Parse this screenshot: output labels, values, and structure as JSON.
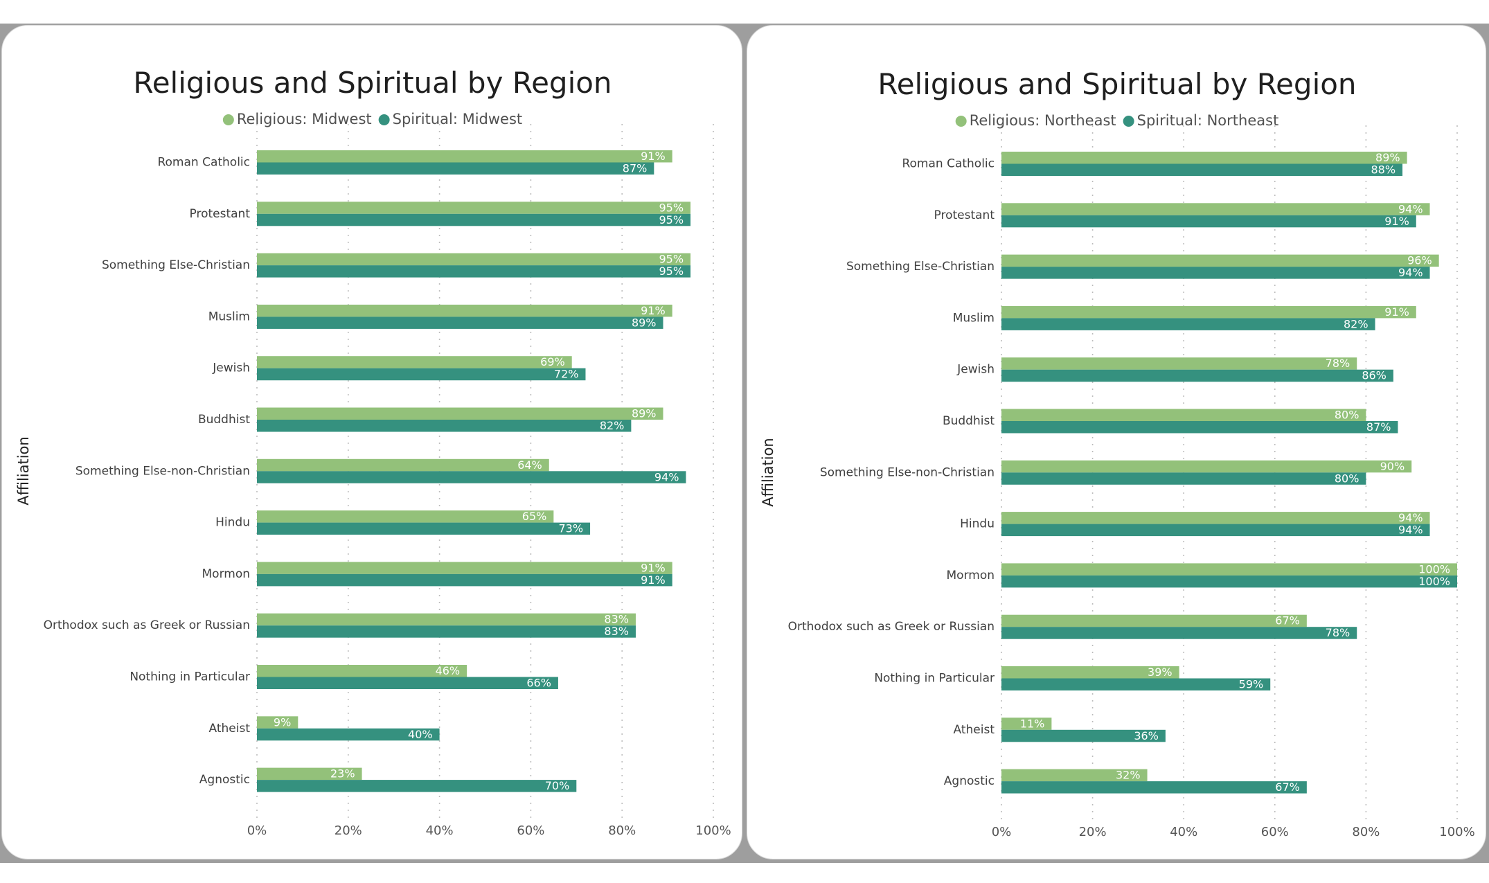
{
  "colors": {
    "religious": "#93c17a",
    "spiritual": "#35917f",
    "grid": "#bdbdbd"
  },
  "chart_data": [
    {
      "type": "bar",
      "orientation": "horizontal",
      "title": "Religious and Spiritual by Region",
      "ylabel": "Affiliation",
      "xlim": [
        0,
        100
      ],
      "x_ticks": [
        "0%",
        "20%",
        "40%",
        "60%",
        "80%",
        "100%"
      ],
      "grid": "vertical-dotted",
      "legend_position": "top-center",
      "categories": [
        "Roman Catholic",
        "Protestant",
        "Something Else-Christian",
        "Muslim",
        "Jewish",
        "Buddhist",
        "Something Else-non-Christian",
        "Hindu",
        "Mormon",
        "Orthodox such as Greek or Russian",
        "Nothing in Particular",
        "Atheist",
        "Agnostic"
      ],
      "series": [
        {
          "name": "Religious: Midwest",
          "values": [
            91,
            95,
            95,
            91,
            69,
            89,
            64,
            65,
            91,
            83,
            46,
            9,
            23
          ],
          "labels": [
            "91%",
            "95%",
            "95%",
            "91%",
            "69%",
            "89%",
            "64%",
            "65%",
            "91%",
            "83%",
            "46%",
            "9%",
            "23%"
          ]
        },
        {
          "name": "Spiritual: Midwest",
          "values": [
            87,
            95,
            95,
            89,
            72,
            82,
            94,
            73,
            91,
            83,
            66,
            40,
            70
          ],
          "labels": [
            "87%",
            "95%",
            "95%",
            "89%",
            "72%",
            "82%",
            "94%",
            "73%",
            "91%",
            "83%",
            "66%",
            "40%",
            "70%"
          ]
        }
      ]
    },
    {
      "type": "bar",
      "orientation": "horizontal",
      "title": "Religious and Spiritual by Region",
      "ylabel": "Affiliation",
      "xlim": [
        0,
        100
      ],
      "x_ticks": [
        "0%",
        "20%",
        "40%",
        "60%",
        "80%",
        "100%"
      ],
      "grid": "vertical-dotted",
      "legend_position": "top-center",
      "categories": [
        "Roman Catholic",
        "Protestant",
        "Something Else-Christian",
        "Muslim",
        "Jewish",
        "Buddhist",
        "Something Else-non-Christian",
        "Hindu",
        "Mormon",
        "Orthodox such as Greek or Russian",
        "Nothing in Particular",
        "Atheist",
        "Agnostic"
      ],
      "series": [
        {
          "name": "Religious: Northeast",
          "values": [
            89,
            94,
            96,
            91,
            78,
            80,
            90,
            94,
            100,
            67,
            39,
            11,
            32
          ],
          "labels": [
            "89%",
            "94%",
            "96%",
            "91%",
            "78%",
            "80%",
            "90%",
            "94%",
            "100%",
            "67%",
            "39%",
            "11%",
            "32%"
          ]
        },
        {
          "name": "Spiritual: Northeast",
          "values": [
            88,
            91,
            94,
            82,
            86,
            87,
            80,
            94,
            100,
            78,
            59,
            36,
            67
          ],
          "labels": [
            "88%",
            "91%",
            "94%",
            "82%",
            "86%",
            "87%",
            "80%",
            "94%",
            "100%",
            "78%",
            "59%",
            "36%",
            "67%"
          ]
        }
      ]
    }
  ]
}
